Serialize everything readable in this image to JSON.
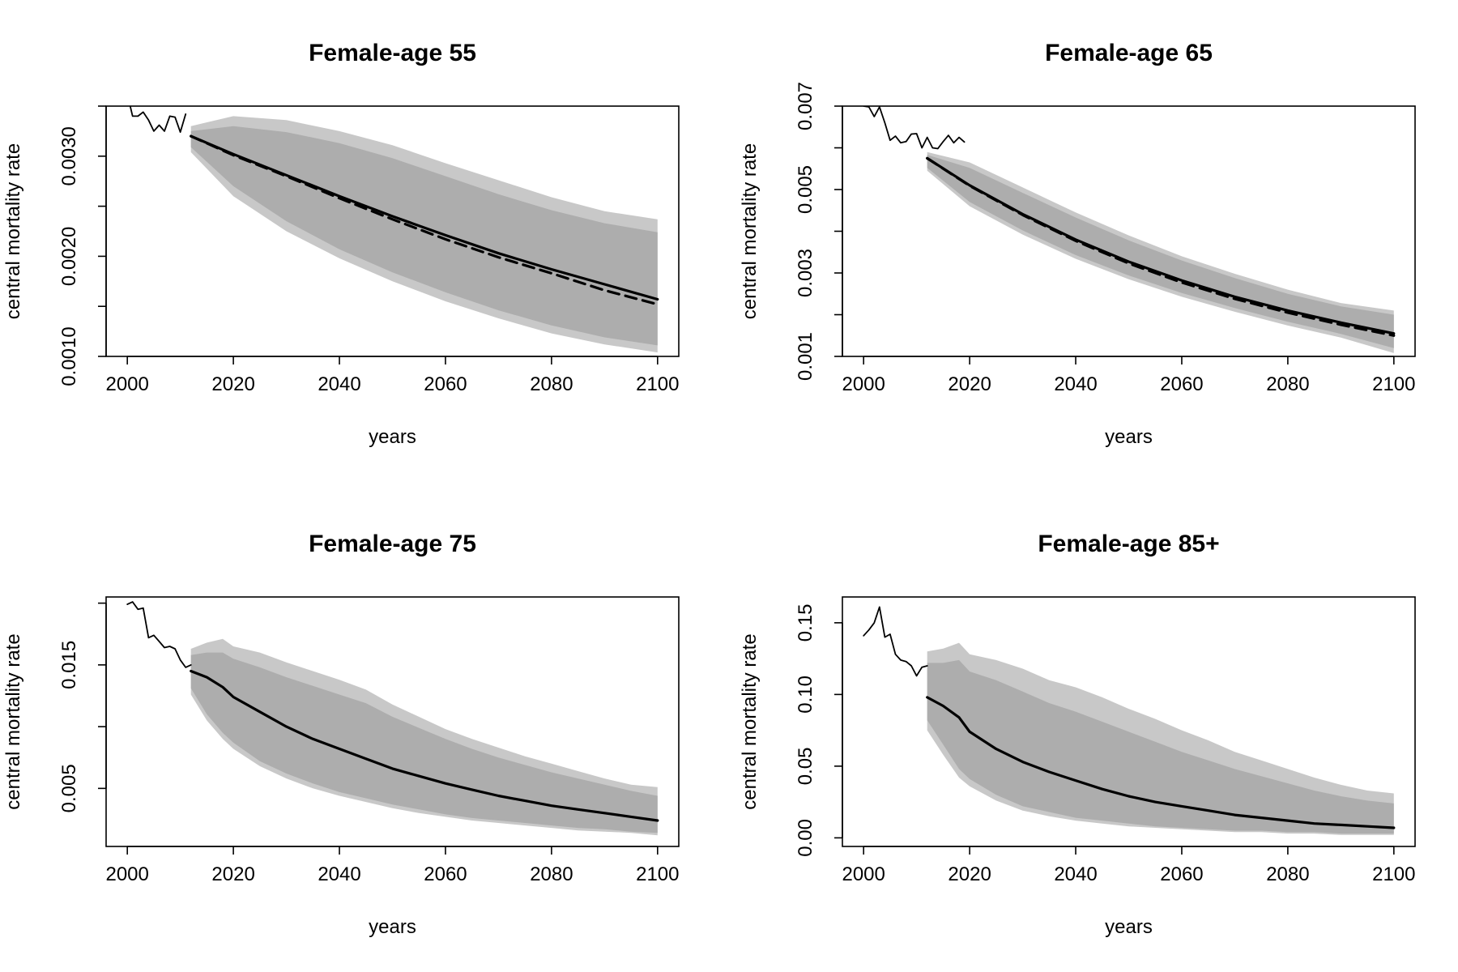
{
  "chart_data": [
    {
      "type": "line",
      "title": "Female-age 55",
      "xlabel": "years",
      "ylabel": "central mortality rate",
      "xlim": [
        2000,
        2100
      ],
      "ylim": [
        0.001,
        0.0035
      ],
      "xticks": [
        2000,
        2020,
        2040,
        2060,
        2080,
        2100
      ],
      "xtick_labels": [
        "2000",
        "2020",
        "2040",
        "2060",
        "2080",
        "2100"
      ],
      "yticks": [
        0.001,
        0.0015,
        0.002,
        0.0025,
        0.003,
        0.0035
      ],
      "ytick_labels": [
        "0.0010",
        "",
        "0.0020",
        "",
        "0.0030",
        ""
      ],
      "colors": {
        "outer_band": "#c8c8c8",
        "inner_band": "#adadad",
        "line": "#000000"
      },
      "series": [
        {
          "role": "observed",
          "x": [
            2000,
            2001,
            2002,
            2003,
            2004,
            2005,
            2006,
            2007,
            2008,
            2009,
            2010,
            2011
          ],
          "y": [
            0.00362,
            0.0034,
            0.0034,
            0.00344,
            0.00336,
            0.00325,
            0.00331,
            0.00325,
            0.0034,
            0.00339,
            0.00324,
            0.00342
          ]
        },
        {
          "role": "forecast-median",
          "x": [
            2012,
            2020,
            2030,
            2040,
            2050,
            2060,
            2070,
            2080,
            2090,
            2100
          ],
          "y": [
            0.0032,
            0.00302,
            0.00281,
            0.0026,
            0.0024,
            0.00221,
            0.00203,
            0.00187,
            0.00172,
            0.00157
          ]
        },
        {
          "role": "forecast-mean",
          "x": [
            2012,
            2020,
            2030,
            2040,
            2050,
            2060,
            2070,
            2080,
            2090,
            2100
          ],
          "y": [
            0.0032,
            0.00301,
            0.0028,
            0.00258,
            0.00237,
            0.00217,
            0.00199,
            0.00183,
            0.00166,
            0.00152
          ]
        }
      ],
      "bands": [
        {
          "role": "outer",
          "x": [
            2012,
            2020,
            2030,
            2040,
            2050,
            2060,
            2070,
            2080,
            2090,
            2100
          ],
          "upper": [
            0.0033,
            0.0034,
            0.00336,
            0.00325,
            0.00311,
            0.00293,
            0.00276,
            0.00259,
            0.00245,
            0.00237
          ],
          "lower": [
            0.00304,
            0.0026,
            0.00225,
            0.00198,
            0.00175,
            0.00155,
            0.00138,
            0.00123,
            0.00112,
            0.00104
          ]
        },
        {
          "role": "inner",
          "x": [
            2012,
            2020,
            2030,
            2040,
            2050,
            2060,
            2070,
            2080,
            2090,
            2100
          ],
          "upper": [
            0.00325,
            0.0033,
            0.00324,
            0.00313,
            0.00298,
            0.0028,
            0.00262,
            0.00246,
            0.00233,
            0.00224
          ],
          "lower": [
            0.00309,
            0.0027,
            0.00235,
            0.00207,
            0.00184,
            0.00164,
            0.00146,
            0.00131,
            0.00119,
            0.00111
          ]
        }
      ]
    },
    {
      "type": "line",
      "title": "Female-age 65",
      "xlabel": "years",
      "ylabel": "central mortality rate",
      "xlim": [
        2000,
        2100
      ],
      "ylim": [
        0.001,
        0.007
      ],
      "xticks": [
        2000,
        2020,
        2040,
        2060,
        2080,
        2100
      ],
      "xtick_labels": [
        "2000",
        "2020",
        "2040",
        "2060",
        "2080",
        "2100"
      ],
      "yticks": [
        0.001,
        0.002,
        0.003,
        0.004,
        0.005,
        0.006,
        0.007
      ],
      "ytick_labels": [
        "0.001",
        "",
        "0.003",
        "",
        "0.005",
        "",
        "0.007"
      ],
      "colors": {
        "outer_band": "#c8c8c8",
        "inner_band": "#adadad",
        "line": "#000000"
      },
      "series": [
        {
          "role": "observed",
          "x": [
            2000,
            2001,
            2002,
            2003,
            2004,
            2005,
            2006,
            2007,
            2008,
            2009,
            2010,
            2011,
            2012,
            2013,
            2014,
            2015,
            2016,
            2017,
            2018,
            2019
          ],
          "y": [
            0.007,
            0.00698,
            0.00675,
            0.00698,
            0.0066,
            0.00618,
            0.00628,
            0.00612,
            0.00615,
            0.00633,
            0.00634,
            0.006,
            0.00625,
            0.006,
            0.00598,
            0.00615,
            0.0063,
            0.00612,
            0.00625,
            0.00614
          ]
        },
        {
          "role": "forecast-median",
          "x": [
            2012,
            2020,
            2030,
            2040,
            2050,
            2060,
            2070,
            2080,
            2090,
            2100
          ],
          "y": [
            0.00575,
            0.0051,
            0.00441,
            0.0038,
            0.00327,
            0.00282,
            0.00243,
            0.0021,
            0.00181,
            0.00155
          ]
        },
        {
          "role": "forecast-mean",
          "x": [
            2012,
            2020,
            2030,
            2040,
            2050,
            2060,
            2070,
            2080,
            2090,
            2100
          ],
          "y": [
            0.00575,
            0.00509,
            0.00439,
            0.00377,
            0.00323,
            0.00277,
            0.00238,
            0.00205,
            0.00176,
            0.0015
          ]
        }
      ],
      "bands": [
        {
          "role": "outer",
          "x": [
            2012,
            2020,
            2030,
            2040,
            2050,
            2060,
            2070,
            2080,
            2090,
            2100
          ],
          "upper": [
            0.0059,
            0.00565,
            0.00505,
            0.00445,
            0.0039,
            0.0034,
            0.00298,
            0.0026,
            0.00228,
            0.0021
          ],
          "lower": [
            0.00545,
            0.0046,
            0.00392,
            0.00334,
            0.00285,
            0.00243,
            0.00207,
            0.00174,
            0.00145,
            0.00108
          ]
        },
        {
          "role": "inner",
          "x": [
            2012,
            2020,
            2030,
            2040,
            2050,
            2060,
            2070,
            2080,
            2090,
            2100
          ],
          "upper": [
            0.00583,
            0.00552,
            0.00492,
            0.00433,
            0.00378,
            0.0033,
            0.00288,
            0.0025,
            0.0022,
            0.002
          ],
          "lower": [
            0.00552,
            0.0047,
            0.00402,
            0.00343,
            0.00294,
            0.00252,
            0.00216,
            0.00183,
            0.00154,
            0.0012
          ]
        }
      ]
    },
    {
      "type": "line",
      "title": "Female-age 75",
      "xlabel": "years",
      "ylabel": "central mortality rate",
      "xlim": [
        2000,
        2100
      ],
      "ylim": [
        0.0003,
        0.0205
      ],
      "xticks": [
        2000,
        2020,
        2040,
        2060,
        2080,
        2100
      ],
      "xtick_labels": [
        "2000",
        "2020",
        "2040",
        "2060",
        "2080",
        "2100"
      ],
      "yticks": [
        0.005,
        0.01,
        0.015,
        0.02
      ],
      "ytick_labels": [
        "0.005",
        "",
        "0.015",
        ""
      ],
      "colors": {
        "outer_band": "#c8c8c8",
        "inner_band": "#adadad",
        "line": "#000000"
      },
      "series": [
        {
          "role": "observed",
          "x": [
            2000,
            2001,
            2002,
            2003,
            2004,
            2005,
            2006,
            2007,
            2008,
            2009,
            2010,
            2011,
            2012
          ],
          "y": [
            0.0199,
            0.0201,
            0.0195,
            0.0196,
            0.0172,
            0.0174,
            0.0169,
            0.0164,
            0.0165,
            0.0163,
            0.0154,
            0.0148,
            0.015
          ]
        },
        {
          "role": "forecast-median",
          "x": [
            2012,
            2015,
            2018,
            2020,
            2025,
            2030,
            2035,
            2040,
            2045,
            2050,
            2055,
            2060,
            2065,
            2070,
            2075,
            2080,
            2085,
            2090,
            2095,
            2100
          ],
          "y": [
            0.0145,
            0.014,
            0.0132,
            0.0124,
            0.0112,
            0.01,
            0.009,
            0.0082,
            0.0074,
            0.0066,
            0.006,
            0.0054,
            0.0049,
            0.0044,
            0.004,
            0.0036,
            0.0033,
            0.003,
            0.0027,
            0.0024
          ]
        }
      ],
      "bands": [
        {
          "role": "outer",
          "x": [
            2012,
            2015,
            2018,
            2020,
            2025,
            2030,
            2035,
            2040,
            2045,
            2050,
            2055,
            2060,
            2065,
            2070,
            2075,
            2080,
            2085,
            2090,
            2095,
            2100
          ],
          "upper": [
            0.0163,
            0.0168,
            0.0171,
            0.0165,
            0.016,
            0.0152,
            0.0145,
            0.0138,
            0.013,
            0.0118,
            0.0108,
            0.0098,
            0.009,
            0.0083,
            0.0076,
            0.007,
            0.0064,
            0.0058,
            0.0053,
            0.0051
          ],
          "lower": [
            0.0126,
            0.0105,
            0.009,
            0.0082,
            0.0068,
            0.0058,
            0.005,
            0.0044,
            0.0039,
            0.0034,
            0.003,
            0.0027,
            0.0024,
            0.0022,
            0.002,
            0.0018,
            0.0016,
            0.0015,
            0.0014,
            0.0012
          ]
        },
        {
          "role": "inner",
          "x": [
            2012,
            2015,
            2018,
            2020,
            2025,
            2030,
            2035,
            2040,
            2045,
            2050,
            2055,
            2060,
            2065,
            2070,
            2075,
            2080,
            2085,
            2090,
            2095,
            2100
          ],
          "upper": [
            0.0158,
            0.016,
            0.016,
            0.0155,
            0.0148,
            0.014,
            0.0133,
            0.0126,
            0.0119,
            0.0108,
            0.0099,
            0.009,
            0.0082,
            0.0075,
            0.0069,
            0.0063,
            0.0058,
            0.0053,
            0.0048,
            0.0044
          ],
          "lower": [
            0.0131,
            0.011,
            0.0095,
            0.0087,
            0.0072,
            0.0062,
            0.0054,
            0.0047,
            0.0042,
            0.0037,
            0.0033,
            0.0029,
            0.0026,
            0.0024,
            0.0022,
            0.002,
            0.0018,
            0.0017,
            0.0015,
            0.0014
          ]
        }
      ]
    },
    {
      "type": "line",
      "title": "Female-age 85+",
      "xlabel": "years",
      "ylabel": "central mortality rate",
      "xlim": [
        2000,
        2100
      ],
      "ylim": [
        -0.006,
        0.168
      ],
      "xticks": [
        2000,
        2020,
        2040,
        2060,
        2080,
        2100
      ],
      "xtick_labels": [
        "2000",
        "2020",
        "2040",
        "2060",
        "2080",
        "2100"
      ],
      "yticks": [
        0.0,
        0.05,
        0.1,
        0.15
      ],
      "ytick_labels": [
        "0.00",
        "0.05",
        "0.10",
        "0.15"
      ],
      "colors": {
        "outer_band": "#c8c8c8",
        "inner_band": "#adadad",
        "line": "#000000"
      },
      "series": [
        {
          "role": "observed",
          "x": [
            2000,
            2001,
            2002,
            2003,
            2004,
            2005,
            2006,
            2007,
            2008,
            2009,
            2010,
            2011,
            2012
          ],
          "y": [
            0.141,
            0.145,
            0.15,
            0.161,
            0.14,
            0.142,
            0.128,
            0.124,
            0.123,
            0.12,
            0.113,
            0.119,
            0.12
          ]
        },
        {
          "role": "forecast-median",
          "x": [
            2012,
            2015,
            2018,
            2020,
            2025,
            2030,
            2035,
            2040,
            2045,
            2050,
            2055,
            2060,
            2065,
            2070,
            2075,
            2080,
            2085,
            2090,
            2095,
            2100
          ],
          "y": [
            0.098,
            0.092,
            0.084,
            0.074,
            0.062,
            0.053,
            0.046,
            0.04,
            0.034,
            0.029,
            0.025,
            0.022,
            0.019,
            0.016,
            0.014,
            0.012,
            0.01,
            0.009,
            0.008,
            0.007
          ]
        }
      ],
      "bands": [
        {
          "role": "outer",
          "x": [
            2012,
            2015,
            2018,
            2020,
            2025,
            2030,
            2035,
            2040,
            2045,
            2050,
            2055,
            2060,
            2065,
            2070,
            2075,
            2080,
            2085,
            2090,
            2095,
            2100
          ],
          "upper": [
            0.13,
            0.132,
            0.136,
            0.128,
            0.124,
            0.118,
            0.11,
            0.105,
            0.098,
            0.09,
            0.083,
            0.075,
            0.068,
            0.06,
            0.054,
            0.048,
            0.042,
            0.037,
            0.033,
            0.031
          ],
          "lower": [
            0.075,
            0.058,
            0.042,
            0.036,
            0.026,
            0.019,
            0.015,
            0.012,
            0.01,
            0.008,
            0.007,
            0.006,
            0.005,
            0.004,
            0.004,
            0.003,
            0.003,
            0.002,
            0.002,
            0.002
          ]
        },
        {
          "role": "inner",
          "x": [
            2012,
            2015,
            2018,
            2020,
            2025,
            2030,
            2035,
            2040,
            2045,
            2050,
            2055,
            2060,
            2065,
            2070,
            2075,
            2080,
            2085,
            2090,
            2095,
            2100
          ],
          "upper": [
            0.122,
            0.122,
            0.124,
            0.116,
            0.11,
            0.102,
            0.094,
            0.088,
            0.081,
            0.074,
            0.067,
            0.06,
            0.054,
            0.048,
            0.043,
            0.038,
            0.033,
            0.029,
            0.026,
            0.024
          ],
          "lower": [
            0.082,
            0.065,
            0.048,
            0.041,
            0.03,
            0.022,
            0.018,
            0.014,
            0.012,
            0.01,
            0.008,
            0.007,
            0.006,
            0.005,
            0.005,
            0.004,
            0.004,
            0.003,
            0.003,
            0.003
          ]
        }
      ]
    }
  ]
}
